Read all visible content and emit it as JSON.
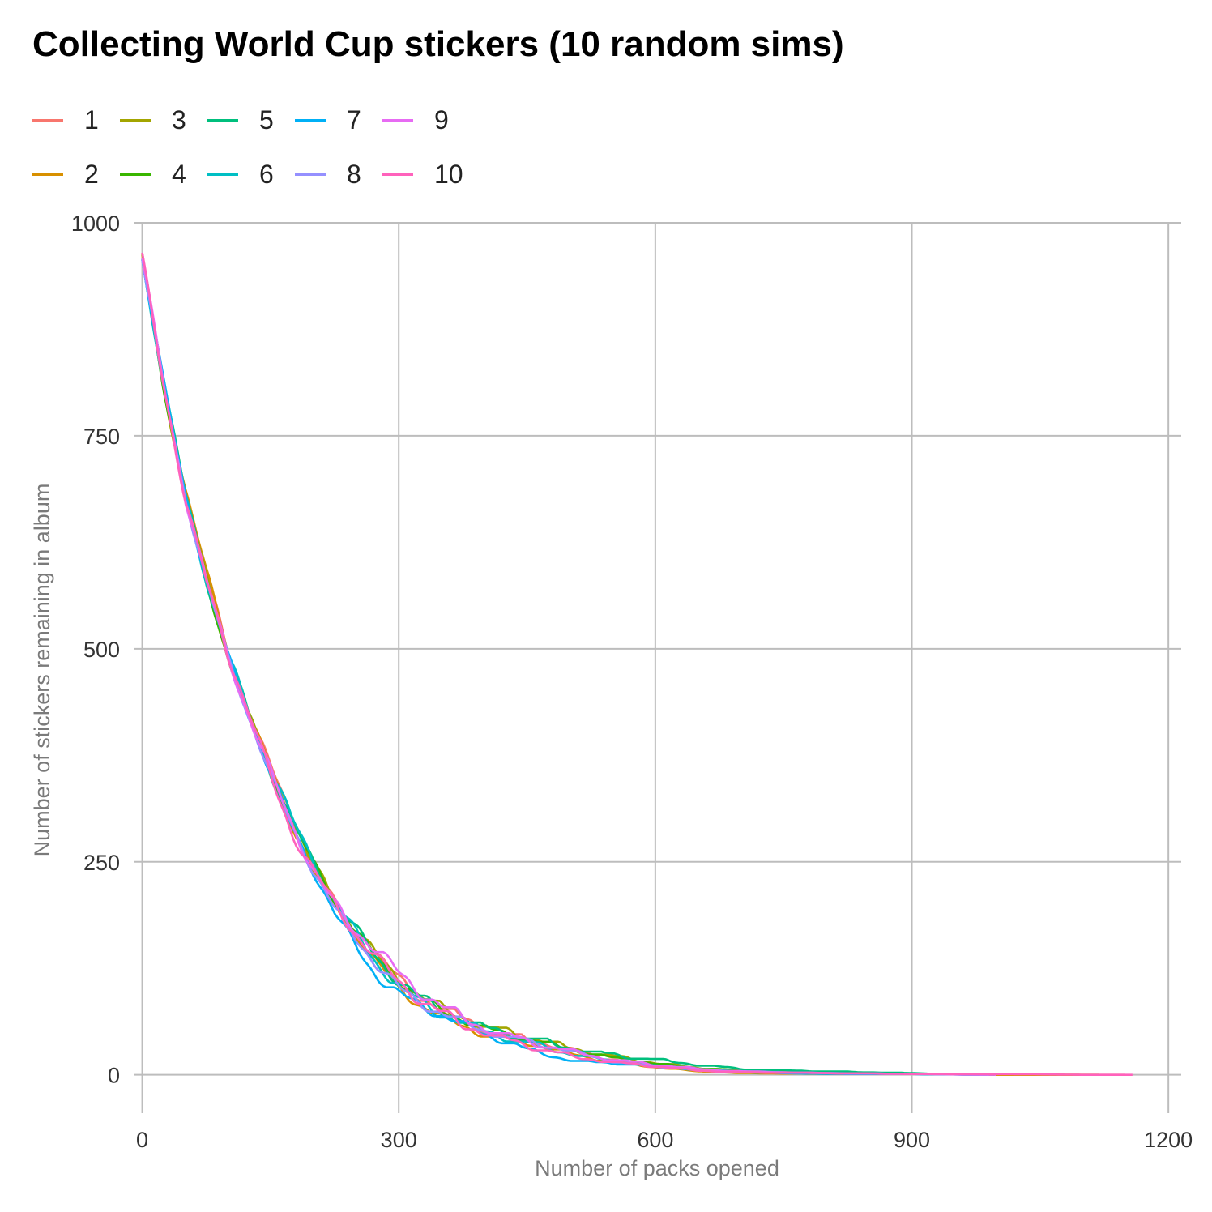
{
  "chart_data": {
    "type": "line",
    "title": "Collecting World Cup stickers (10 random sims)",
    "xlabel": "Number of packs opened",
    "ylabel": "Number of stickers remaining in album",
    "xlim": [
      -10,
      1215
    ],
    "ylim": [
      -45,
      1000
    ],
    "xticks": [
      0,
      300,
      600,
      900,
      1200
    ],
    "yticks": [
      0,
      250,
      500,
      750,
      1000
    ],
    "grid": true,
    "legend_position": "top-left",
    "series": [
      {
        "name": "1",
        "color": "#F8766D",
        "noise": 5,
        "phase": 0.3,
        "end": 1150,
        "x": [
          0,
          25,
          50,
          75,
          100,
          125,
          150,
          175,
          200,
          225,
          250,
          275,
          300,
          325,
          350,
          375,
          400,
          450,
          500,
          550,
          600,
          650,
          700,
          800,
          900,
          1000,
          1100,
          1150
        ],
        "values": [
          959,
          810,
          685,
          585,
          498,
          425,
          362,
          300,
          245,
          200,
          165,
          140,
          112,
          92,
          78,
          68,
          55,
          42,
          30,
          18,
          10,
          5,
          3,
          2,
          1,
          1,
          0,
          0
        ]
      },
      {
        "name": "2",
        "color": "#D89000",
        "noise": 4,
        "phase": 1.1,
        "end": 1120,
        "x": [
          0,
          25,
          50,
          75,
          100,
          125,
          150,
          175,
          200,
          225,
          250,
          275,
          300,
          325,
          350,
          375,
          400,
          450,
          500,
          550,
          600,
          650,
          700,
          800,
          900,
          1000,
          1100,
          1120
        ],
        "values": [
          959,
          815,
          690,
          590,
          500,
          422,
          360,
          295,
          240,
          200,
          165,
          130,
          102,
          82,
          68,
          58,
          48,
          38,
          25,
          15,
          9,
          4,
          2,
          1,
          1,
          0,
          0,
          0
        ]
      },
      {
        "name": "3",
        "color": "#A3A500",
        "noise": 5,
        "phase": 2.0,
        "end": 1000,
        "x": [
          0,
          25,
          50,
          75,
          100,
          125,
          150,
          175,
          200,
          225,
          250,
          275,
          300,
          325,
          350,
          375,
          400,
          450,
          500,
          550,
          600,
          650,
          700,
          800,
          900,
          1000
        ],
        "values": [
          959,
          810,
          680,
          583,
          492,
          420,
          352,
          300,
          245,
          205,
          170,
          138,
          112,
          92,
          78,
          68,
          58,
          45,
          32,
          22,
          14,
          8,
          5,
          3,
          1,
          0
        ]
      },
      {
        "name": "4",
        "color": "#39B600",
        "noise": 4,
        "phase": 2.8,
        "end": 1000,
        "x": [
          0,
          25,
          50,
          75,
          100,
          125,
          150,
          175,
          200,
          225,
          250,
          275,
          300,
          325,
          350,
          375,
          400,
          450,
          500,
          550,
          600,
          650,
          700,
          800,
          900,
          1000
        ],
        "values": [
          959,
          808,
          680,
          580,
          490,
          418,
          355,
          300,
          248,
          205,
          168,
          135,
          110,
          90,
          76,
          65,
          55,
          42,
          30,
          20,
          13,
          8,
          5,
          3,
          1,
          0
        ]
      },
      {
        "name": "5",
        "color": "#00BF7D",
        "noise": 5,
        "phase": 3.6,
        "end": 990,
        "x": [
          0,
          25,
          50,
          75,
          100,
          125,
          150,
          175,
          200,
          225,
          250,
          275,
          300,
          325,
          350,
          375,
          400,
          450,
          500,
          550,
          600,
          650,
          700,
          800,
          900,
          990
        ],
        "values": [
          959,
          812,
          683,
          582,
          495,
          420,
          355,
          298,
          248,
          208,
          170,
          136,
          110,
          90,
          76,
          66,
          56,
          45,
          32,
          24,
          18,
          12,
          7,
          4,
          2,
          0
        ]
      },
      {
        "name": "6",
        "color": "#00BFC4",
        "noise": 5,
        "phase": 4.4,
        "end": 990,
        "x": [
          0,
          25,
          50,
          75,
          100,
          125,
          150,
          175,
          200,
          225,
          250,
          275,
          300,
          325,
          350,
          375,
          400,
          450,
          500,
          550,
          600,
          650,
          700,
          800,
          900,
          990
        ],
        "values": [
          959,
          810,
          682,
          582,
          492,
          425,
          362,
          300,
          250,
          205,
          165,
          130,
          105,
          85,
          72,
          62,
          52,
          38,
          25,
          16,
          10,
          6,
          4,
          2,
          1,
          0
        ]
      },
      {
        "name": "7",
        "color": "#00B0F6",
        "noise": 4,
        "phase": 5.2,
        "end": 980,
        "x": [
          0,
          25,
          50,
          75,
          100,
          125,
          150,
          175,
          200,
          225,
          250,
          275,
          300,
          325,
          350,
          375,
          400,
          450,
          500,
          550,
          600,
          650,
          700,
          800,
          900,
          980
        ],
        "values": [
          959,
          812,
          682,
          582,
          492,
          420,
          355,
          290,
          240,
          190,
          150,
          115,
          95,
          82,
          70,
          60,
          48,
          30,
          17,
          14,
          10,
          6,
          3,
          1,
          1,
          0
        ]
      },
      {
        "name": "8",
        "color": "#9590FF",
        "noise": 4,
        "phase": 6.0,
        "end": 990,
        "x": [
          0,
          25,
          50,
          75,
          100,
          125,
          150,
          175,
          200,
          225,
          250,
          275,
          300,
          325,
          350,
          375,
          400,
          450,
          500,
          550,
          600,
          650,
          700,
          800,
          900,
          990
        ],
        "values": [
          959,
          808,
          680,
          580,
          490,
          420,
          352,
          292,
          240,
          195,
          160,
          128,
          102,
          85,
          72,
          62,
          52,
          40,
          28,
          16,
          10,
          6,
          4,
          2,
          1,
          0
        ]
      },
      {
        "name": "9",
        "color": "#E76BF3",
        "noise": 5,
        "phase": 6.8,
        "end": 1000,
        "x": [
          0,
          25,
          50,
          75,
          100,
          125,
          150,
          175,
          200,
          225,
          250,
          275,
          300,
          325,
          350,
          375,
          400,
          450,
          500,
          550,
          600,
          650,
          700,
          800,
          900,
          1000
        ],
        "values": [
          959,
          810,
          680,
          580,
          492,
          420,
          355,
          295,
          240,
          200,
          170,
          145,
          120,
          98,
          80,
          68,
          56,
          40,
          28,
          18,
          12,
          7,
          4,
          2,
          1,
          0
        ]
      },
      {
        "name": "10",
        "color": "#FF62BC",
        "noise": 5,
        "phase": 7.6,
        "end": 1160,
        "x": [
          0,
          25,
          50,
          75,
          100,
          125,
          150,
          175,
          200,
          225,
          250,
          275,
          300,
          325,
          350,
          375,
          400,
          450,
          500,
          550,
          600,
          650,
          700,
          800,
          900,
          1000,
          1100,
          1160
        ],
        "values": [
          959,
          810,
          678,
          578,
          495,
          425,
          350,
          285,
          240,
          200,
          165,
          135,
          110,
          88,
          72,
          60,
          50,
          35,
          22,
          15,
          10,
          5,
          3,
          2,
          1,
          1,
          0,
          0
        ]
      }
    ]
  }
}
